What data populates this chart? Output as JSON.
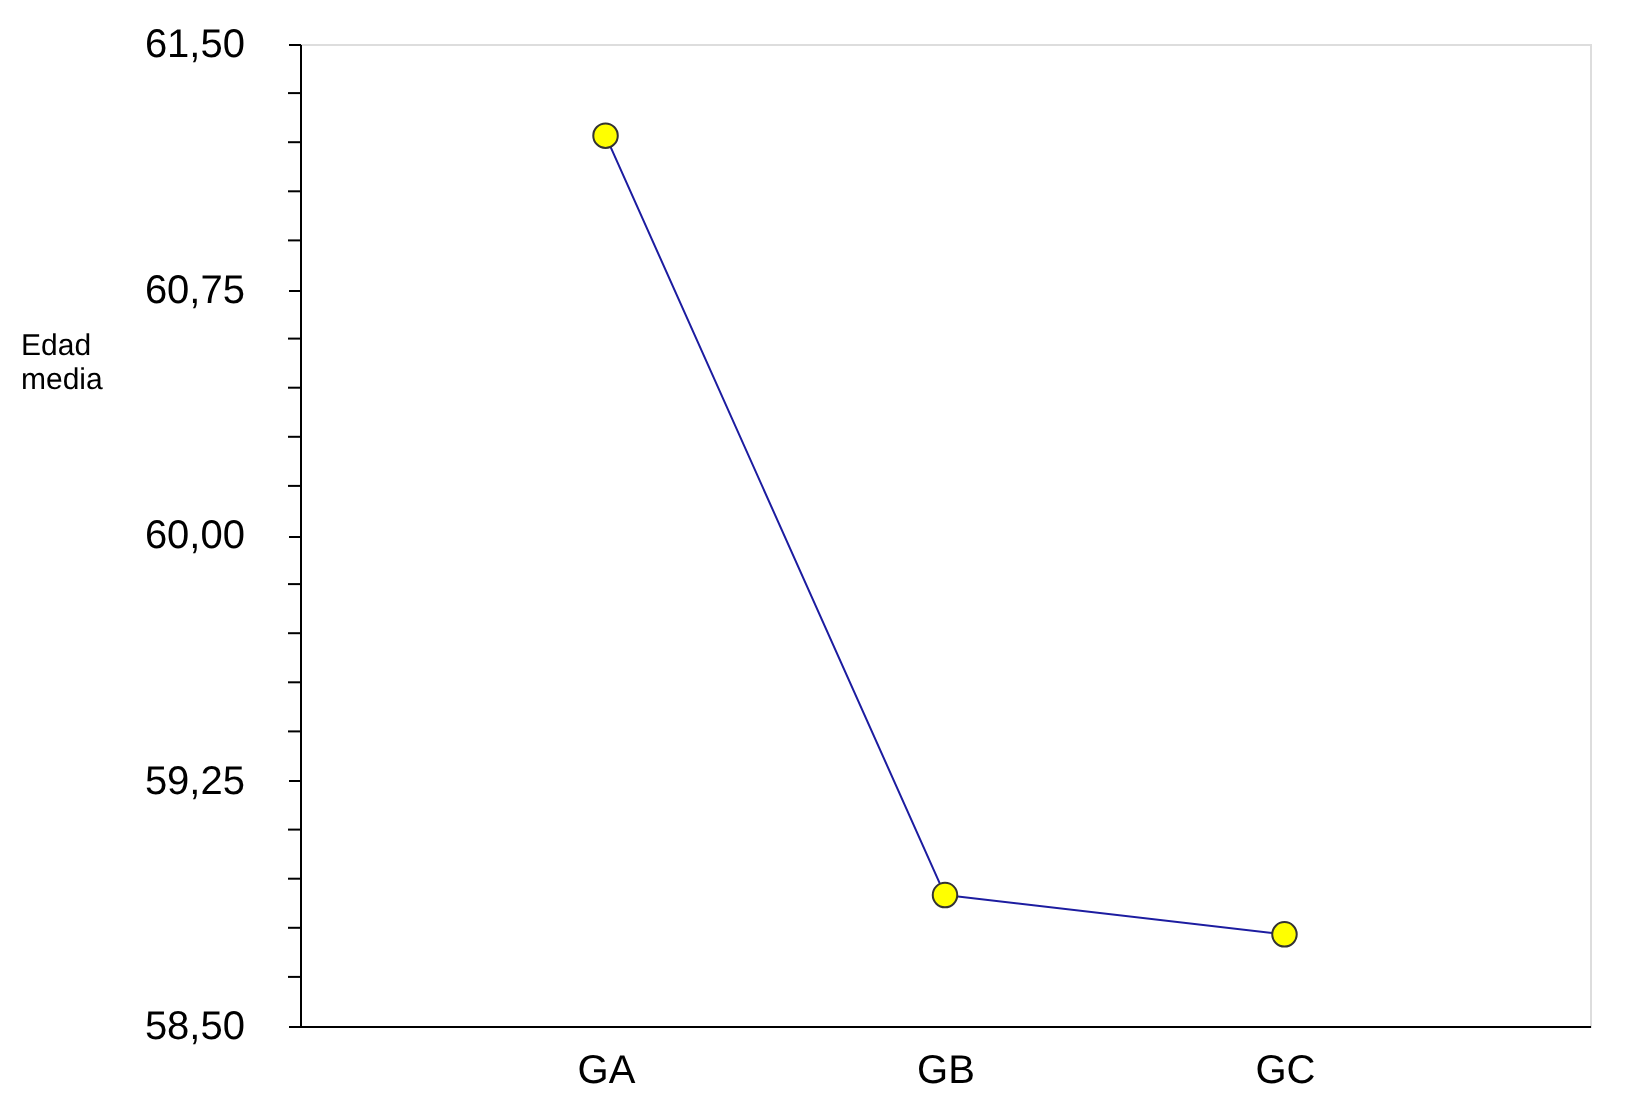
{
  "chart_data": {
    "type": "line",
    "ylabel": "Edad media",
    "categories": [
      "GA",
      "GB",
      "GC"
    ],
    "series": [
      {
        "color": "#1c1ca0",
        "colors": [
          "#ffff00",
          "#ffff00",
          "#ffff00"
        ],
        "values": [
          61.22,
          58.9,
          58.78
        ]
      }
    ],
    "ylim": [
      58.5,
      61.5
    ],
    "yticks": [
      {
        "value": 58.5,
        "label": "58,50"
      },
      {
        "value": 58.65,
        "label": null
      },
      {
        "value": 58.8,
        "label": null
      },
      {
        "value": 58.95,
        "label": null
      },
      {
        "value": 59.1,
        "label": null
      },
      {
        "value": 59.25,
        "label": "59,25"
      },
      {
        "value": 59.4,
        "label": null
      },
      {
        "value": 59.55,
        "label": null
      },
      {
        "value": 59.7,
        "label": null
      },
      {
        "value": 59.85,
        "label": null
      },
      {
        "value": 60.0,
        "label": "60,00"
      },
      {
        "value": 60.15,
        "label": null
      },
      {
        "value": 60.3,
        "label": null
      },
      {
        "value": 60.45,
        "label": null
      },
      {
        "value": 60.6,
        "label": null
      },
      {
        "value": 60.75,
        "label": "60,75"
      },
      {
        "value": 60.9,
        "label": null
      },
      {
        "value": 61.05,
        "label": null
      },
      {
        "value": 61.2,
        "label": null
      },
      {
        "value": 61.35,
        "label": null
      },
      {
        "value": 61.5,
        "label": "61,50"
      }
    ],
    "grid": false,
    "marker": "circle",
    "line_style": "solid"
  }
}
